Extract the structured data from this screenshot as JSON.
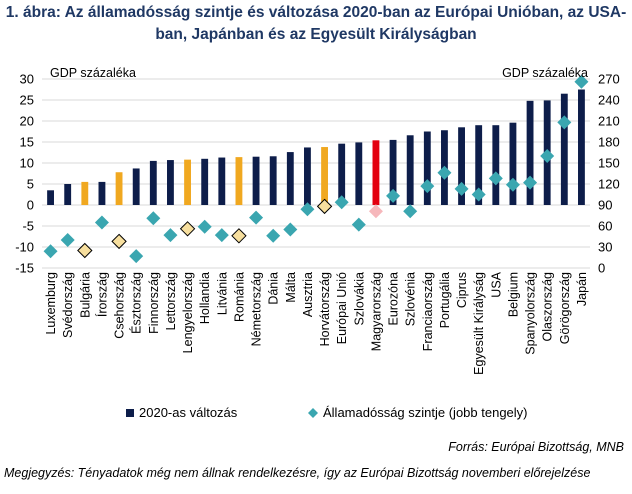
{
  "title": "1. ábra: Az államadósság szintje és változása 2020-ban az Európai Unióban, az USA-ban, Japánban és az Egyesült Királyságban",
  "source": "Forrás: Európai Bizottság, MNB",
  "note": "Megjegyzés: Tényadatok még nem állnak rendelkezésre, így az Európai Bizottság novemberi előrejelzése",
  "colors": {
    "bar_default": "#0d1d4a",
    "bar_highlight": "#f0a820",
    "bar_hungary": "#e3000f",
    "diamond_default": "#3aa6b0",
    "diamond_highlight": "#f7df9e",
    "diamond_hungary": "#f6b7bb"
  },
  "chart_data": {
    "type": "bar",
    "left_axis_label": "GDP százaléka",
    "right_axis_label": "GDP százaléka",
    "ylim": [
      -15,
      30
    ],
    "yticks": [
      -15,
      -10,
      -5,
      0,
      5,
      10,
      15,
      20,
      25,
      30
    ],
    "y2lim": [
      0,
      270
    ],
    "y2ticks": [
      0,
      30,
      60,
      90,
      120,
      150,
      180,
      210,
      240,
      270
    ],
    "legend_position": "bottom",
    "categories": [
      "Luxemburg",
      "Svédország",
      "Bulgária",
      "Írország",
      "Csehország",
      "Észtország",
      "Finnország",
      "Lettország",
      "Lengyelország",
      "Hollandia",
      "Litvánia",
      "Románia",
      "Németország",
      "Dánia",
      "Málta",
      "Ausztria",
      "Horvátország",
      "Európai Unió",
      "Szlovákia",
      "Magyarország",
      "Eurozóna",
      "Szlovénia",
      "Franciaország",
      "Portugália",
      "Ciprus",
      "Egyesült Királyság",
      "USA",
      "Belgium",
      "Spanyolország",
      "Olaszország",
      "Görögország",
      "Japán"
    ],
    "highlight": [
      "default",
      "default",
      "highlight",
      "default",
      "highlight",
      "default",
      "default",
      "default",
      "highlight",
      "default",
      "default",
      "highlight",
      "default",
      "default",
      "default",
      "default",
      "highlight",
      "default",
      "default",
      "hungary",
      "default",
      "default",
      "default",
      "default",
      "default",
      "default",
      "default",
      "default",
      "default",
      "default",
      "default",
      "default"
    ],
    "series": [
      {
        "name": "2020-as változás",
        "axis": "left",
        "kind": "bar",
        "values": [
          3.5,
          5.0,
          5.5,
          5.5,
          7.8,
          8.7,
          10.5,
          10.7,
          10.8,
          11.0,
          11.3,
          11.4,
          11.5,
          11.6,
          12.6,
          13.7,
          13.8,
          14.6,
          14.9,
          15.4,
          15.5,
          16.6,
          17.5,
          17.8,
          18.5,
          19.0,
          19.0,
          19.6,
          24.8,
          24.9,
          26.5,
          27.5
        ]
      },
      {
        "name": "Államadósság szintje (jobb tengely)",
        "axis": "right",
        "kind": "diamond",
        "values": [
          24,
          40,
          25,
          65,
          38,
          17,
          71,
          47,
          56,
          59,
          47,
          46,
          72,
          46,
          55,
          84,
          88,
          94,
          62,
          81,
          103,
          81,
          117,
          136,
          113,
          105,
          128,
          119,
          122,
          160,
          208,
          266
        ]
      }
    ]
  }
}
